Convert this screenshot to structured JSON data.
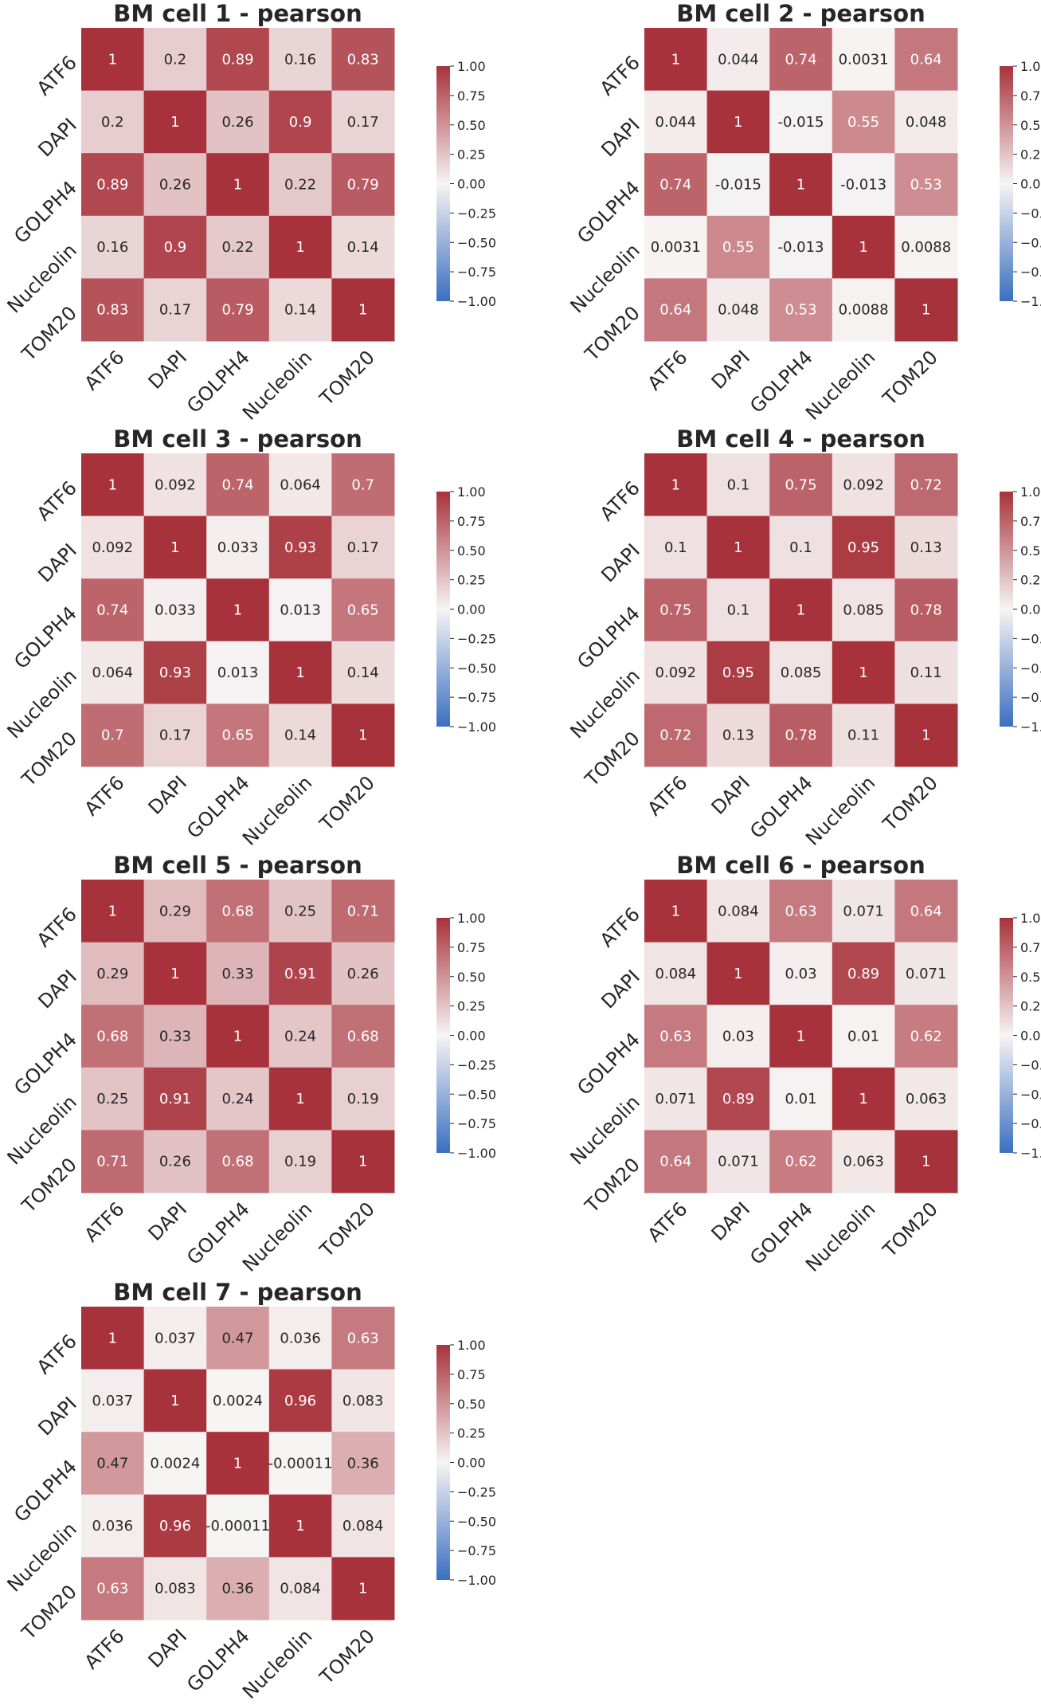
{
  "labels": [
    "ATF6",
    "DAPI",
    "GOLPH4",
    "Nucleolin",
    "TOM20"
  ],
  "colorbar": {
    "ticks": [
      "1.00",
      "0.75",
      "0.50",
      "0.25",
      "0.00",
      "−0.25",
      "−0.50",
      "−0.75",
      "−1.00"
    ],
    "vmin": -1,
    "vmax": 1,
    "colors": {
      "low": "#3a6fc1",
      "mid": "#f7f4f4",
      "high": "#a8323b"
    }
  },
  "chart_data": [
    {
      "type": "heatmap",
      "title": "BM cell 1 - pearson",
      "x": [
        "ATF6",
        "DAPI",
        "GOLPH4",
        "Nucleolin",
        "TOM20"
      ],
      "y": [
        "ATF6",
        "DAPI",
        "GOLPH4",
        "Nucleolin",
        "TOM20"
      ],
      "values": [
        [
          "1",
          "0.2",
          "0.89",
          "0.16",
          "0.83"
        ],
        [
          "0.2",
          "1",
          "0.26",
          "0.9",
          "0.17"
        ],
        [
          "0.89",
          "0.26",
          "1",
          "0.22",
          "0.79"
        ],
        [
          "0.16",
          "0.9",
          "0.22",
          "1",
          "0.14"
        ],
        [
          "0.83",
          "0.17",
          "0.79",
          "0.14",
          "1"
        ]
      ],
      "vmin": -1,
      "vmax": 1
    },
    {
      "type": "heatmap",
      "title": "BM cell 2 - pearson",
      "x": [
        "ATF6",
        "DAPI",
        "GOLPH4",
        "Nucleolin",
        "TOM20"
      ],
      "y": [
        "ATF6",
        "DAPI",
        "GOLPH4",
        "Nucleolin",
        "TOM20"
      ],
      "values": [
        [
          "1",
          "0.044",
          "0.74",
          "0.0031",
          "0.64"
        ],
        [
          "0.044",
          "1",
          "-0.015",
          "0.55",
          "0.048"
        ],
        [
          "0.74",
          "-0.015",
          "1",
          "-0.013",
          "0.53"
        ],
        [
          "0.0031",
          "0.55",
          "-0.013",
          "1",
          "0.0088"
        ],
        [
          "0.64",
          "0.048",
          "0.53",
          "0.0088",
          "1"
        ]
      ],
      "vmin": -1,
      "vmax": 1
    },
    {
      "type": "heatmap",
      "title": "BM cell 3 - pearson",
      "x": [
        "ATF6",
        "DAPI",
        "GOLPH4",
        "Nucleolin",
        "TOM20"
      ],
      "y": [
        "ATF6",
        "DAPI",
        "GOLPH4",
        "Nucleolin",
        "TOM20"
      ],
      "values": [
        [
          "1",
          "0.092",
          "0.74",
          "0.064",
          "0.7"
        ],
        [
          "0.092",
          "1",
          "0.033",
          "0.93",
          "0.17"
        ],
        [
          "0.74",
          "0.033",
          "1",
          "0.013",
          "0.65"
        ],
        [
          "0.064",
          "0.93",
          "0.013",
          "1",
          "0.14"
        ],
        [
          "0.7",
          "0.17",
          "0.65",
          "0.14",
          "1"
        ]
      ],
      "vmin": -1,
      "vmax": 1
    },
    {
      "type": "heatmap",
      "title": "BM cell 4 - pearson",
      "x": [
        "ATF6",
        "DAPI",
        "GOLPH4",
        "Nucleolin",
        "TOM20"
      ],
      "y": [
        "ATF6",
        "DAPI",
        "GOLPH4",
        "Nucleolin",
        "TOM20"
      ],
      "values": [
        [
          "1",
          "0.1",
          "0.75",
          "0.092",
          "0.72"
        ],
        [
          "0.1",
          "1",
          "0.1",
          "0.95",
          "0.13"
        ],
        [
          "0.75",
          "0.1",
          "1",
          "0.085",
          "0.78"
        ],
        [
          "0.092",
          "0.95",
          "0.085",
          "1",
          "0.11"
        ],
        [
          "0.72",
          "0.13",
          "0.78",
          "0.11",
          "1"
        ]
      ],
      "vmin": -1,
      "vmax": 1
    },
    {
      "type": "heatmap",
      "title": "BM cell 5 - pearson",
      "x": [
        "ATF6",
        "DAPI",
        "GOLPH4",
        "Nucleolin",
        "TOM20"
      ],
      "y": [
        "ATF6",
        "DAPI",
        "GOLPH4",
        "Nucleolin",
        "TOM20"
      ],
      "values": [
        [
          "1",
          "0.29",
          "0.68",
          "0.25",
          "0.71"
        ],
        [
          "0.29",
          "1",
          "0.33",
          "0.91",
          "0.26"
        ],
        [
          "0.68",
          "0.33",
          "1",
          "0.24",
          "0.68"
        ],
        [
          "0.25",
          "0.91",
          "0.24",
          "1",
          "0.19"
        ],
        [
          "0.71",
          "0.26",
          "0.68",
          "0.19",
          "1"
        ]
      ],
      "vmin": -1,
      "vmax": 1
    },
    {
      "type": "heatmap",
      "title": "BM cell 6 - pearson",
      "x": [
        "ATF6",
        "DAPI",
        "GOLPH4",
        "Nucleolin",
        "TOM20"
      ],
      "y": [
        "ATF6",
        "DAPI",
        "GOLPH4",
        "Nucleolin",
        "TOM20"
      ],
      "values": [
        [
          "1",
          "0.084",
          "0.63",
          "0.071",
          "0.64"
        ],
        [
          "0.084",
          "1",
          "0.03",
          "0.89",
          "0.071"
        ],
        [
          "0.63",
          "0.03",
          "1",
          "0.01",
          "0.62"
        ],
        [
          "0.071",
          "0.89",
          "0.01",
          "1",
          "0.063"
        ],
        [
          "0.64",
          "0.071",
          "0.62",
          "0.063",
          "1"
        ]
      ],
      "vmin": -1,
      "vmax": 1
    },
    {
      "type": "heatmap",
      "title": "BM cell 7 - pearson",
      "x": [
        "ATF6",
        "DAPI",
        "GOLPH4",
        "Nucleolin",
        "TOM20"
      ],
      "y": [
        "ATF6",
        "DAPI",
        "GOLPH4",
        "Nucleolin",
        "TOM20"
      ],
      "values": [
        [
          "1",
          "0.037",
          "0.47",
          "0.036",
          "0.63"
        ],
        [
          "0.037",
          "1",
          "0.0024",
          "0.96",
          "0.083"
        ],
        [
          "0.47",
          "0.0024",
          "1",
          "-0.00011",
          "0.36"
        ],
        [
          "0.036",
          "0.96",
          "-0.00011",
          "1",
          "0.084"
        ],
        [
          "0.63",
          "0.083",
          "0.36",
          "0.084",
          "1"
        ]
      ],
      "vmin": -1,
      "vmax": 1
    }
  ]
}
